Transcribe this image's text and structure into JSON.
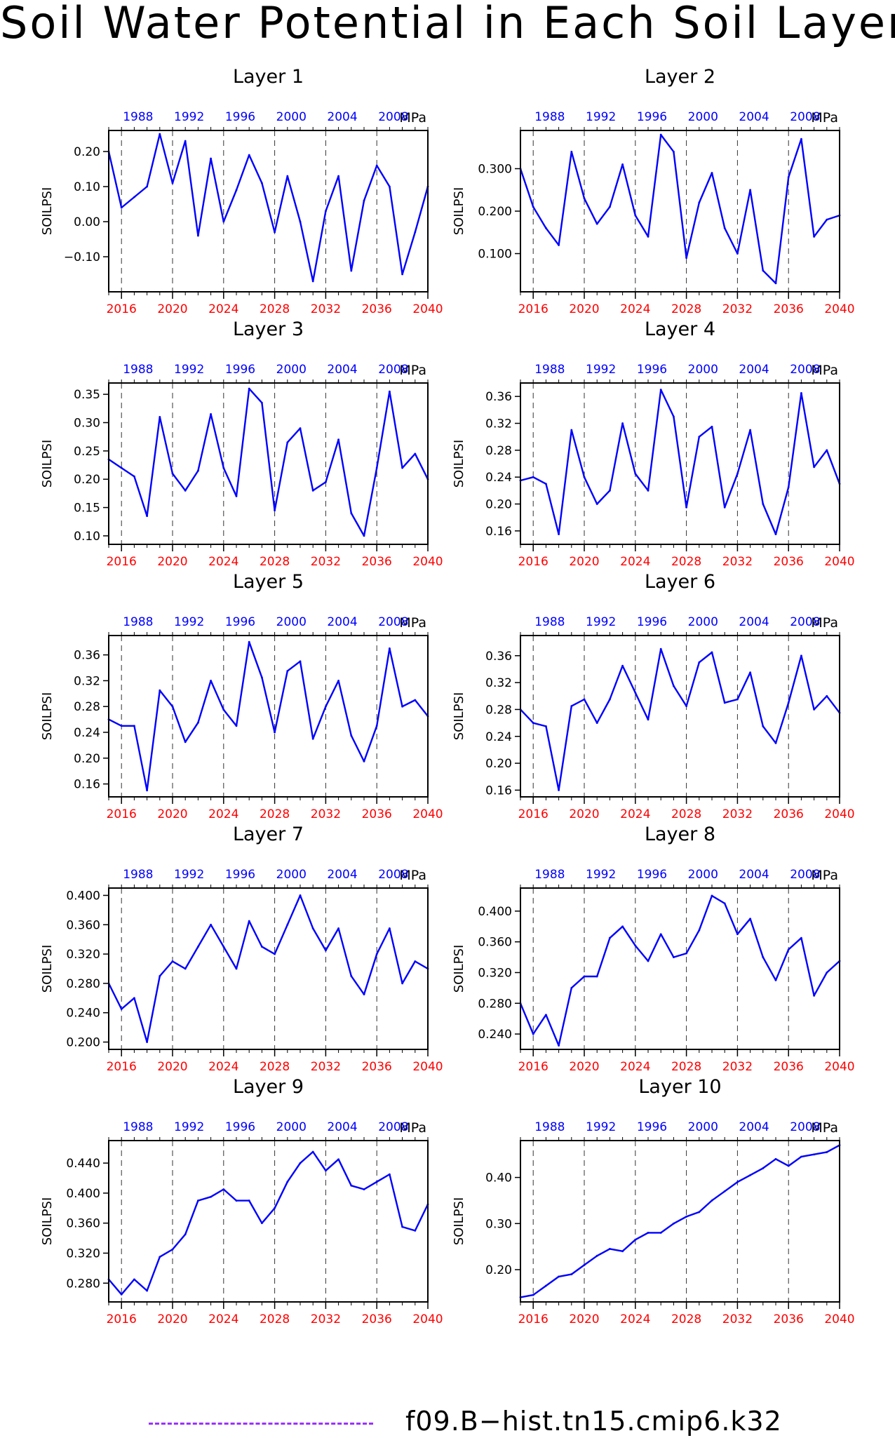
{
  "title": "Soil Water Potential in Each Soil Layer",
  "legend": {
    "label": "f09.B−hist.tn15.cmip6.k32",
    "color": "#9b30ff"
  },
  "colors": {
    "line": "#0000ff",
    "bottom_ticks": "#ff0000",
    "top_ticks": "#0000ff"
  },
  "chart_data": [
    {
      "type": "line",
      "title": "Layer 1",
      "ylabel": "SOILPSI",
      "unit": "MPa",
      "xlim": [
        2015,
        2040
      ],
      "x_bottom_ticks": [
        "2016",
        "2020",
        "2024",
        "2028",
        "2032",
        "2036",
        "2040"
      ],
      "x_top_ticks": [
        "1988",
        "1992",
        "1996",
        "2000",
        "2004",
        "2008"
      ],
      "ylim": [
        -0.2,
        0.26
      ],
      "yticks": [
        0.2,
        0.1,
        0.0,
        -0.1
      ],
      "ytick_labels": [
        "0.20",
        "0.10",
        "0.00",
        "−0.10"
      ],
      "x": [
        2015,
        2016,
        2017,
        2018,
        2019,
        2020,
        2021,
        2022,
        2023,
        2024,
        2025,
        2026,
        2027,
        2028,
        2029,
        2030,
        2031,
        2032,
        2033,
        2034,
        2035,
        2036,
        2037,
        2038,
        2039,
        2040
      ],
      "values": [
        0.2,
        0.04,
        0.07,
        0.1,
        0.25,
        0.11,
        0.23,
        -0.04,
        0.18,
        0.0,
        0.09,
        0.19,
        0.11,
        -0.03,
        0.13,
        0.0,
        -0.17,
        0.03,
        0.13,
        -0.14,
        0.06,
        0.16,
        0.1,
        -0.15,
        -0.03,
        0.1
      ]
    },
    {
      "type": "line",
      "title": "Layer 2",
      "ylabel": "SOILPSI",
      "unit": "MPa",
      "xlim": [
        2015,
        2040
      ],
      "x_bottom_ticks": [
        "2016",
        "2020",
        "2024",
        "2028",
        "2032",
        "2036",
        "2040"
      ],
      "x_top_ticks": [
        "1988",
        "1992",
        "1996",
        "2000",
        "2004",
        "2008"
      ],
      "ylim": [
        0.01,
        0.39
      ],
      "yticks": [
        0.3,
        0.2,
        0.1
      ],
      "ytick_labels": [
        "0.300",
        "0.200",
        "0.100"
      ],
      "x": [
        2015,
        2016,
        2017,
        2018,
        2019,
        2020,
        2021,
        2022,
        2023,
        2024,
        2025,
        2026,
        2027,
        2028,
        2029,
        2030,
        2031,
        2032,
        2033,
        2034,
        2035,
        2036,
        2037,
        2038,
        2039,
        2040
      ],
      "values": [
        0.3,
        0.21,
        0.16,
        0.12,
        0.34,
        0.23,
        0.17,
        0.21,
        0.31,
        0.19,
        0.14,
        0.38,
        0.34,
        0.09,
        0.22,
        0.29,
        0.16,
        0.1,
        0.25,
        0.06,
        0.03,
        0.28,
        0.37,
        0.14,
        0.18,
        0.19
      ]
    },
    {
      "type": "line",
      "title": "Layer 3",
      "ylabel": "SOILPSI",
      "unit": "MPa",
      "xlim": [
        2015,
        2040
      ],
      "x_bottom_ticks": [
        "2016",
        "2020",
        "2024",
        "2028",
        "2032",
        "2036",
        "2040"
      ],
      "x_top_ticks": [
        "1988",
        "1992",
        "1996",
        "2000",
        "2004",
        "2008"
      ],
      "ylim": [
        0.085,
        0.37
      ],
      "yticks": [
        0.35,
        0.3,
        0.25,
        0.2,
        0.15,
        0.1
      ],
      "ytick_labels": [
        "0.35",
        "0.30",
        "0.25",
        "0.20",
        "0.15",
        "0.10"
      ],
      "x": [
        2015,
        2016,
        2017,
        2018,
        2019,
        2020,
        2021,
        2022,
        2023,
        2024,
        2025,
        2026,
        2027,
        2028,
        2029,
        2030,
        2031,
        2032,
        2033,
        2034,
        2035,
        2036,
        2037,
        2038,
        2039,
        2040
      ],
      "values": [
        0.235,
        0.22,
        0.205,
        0.135,
        0.31,
        0.21,
        0.18,
        0.215,
        0.315,
        0.22,
        0.17,
        0.36,
        0.335,
        0.145,
        0.265,
        0.29,
        0.18,
        0.195,
        0.27,
        0.14,
        0.1,
        0.22,
        0.355,
        0.22,
        0.245,
        0.2
      ]
    },
    {
      "type": "line",
      "title": "Layer 4",
      "ylabel": "SOILPSI",
      "unit": "MPa",
      "xlim": [
        2015,
        2040
      ],
      "x_bottom_ticks": [
        "2016",
        "2020",
        "2024",
        "2028",
        "2032",
        "2036",
        "2040"
      ],
      "x_top_ticks": [
        "1988",
        "1992",
        "1996",
        "2000",
        "2004",
        "2008"
      ],
      "ylim": [
        0.14,
        0.38
      ],
      "yticks": [
        0.36,
        0.32,
        0.28,
        0.24,
        0.2,
        0.16
      ],
      "ytick_labels": [
        "0.36",
        "0.32",
        "0.28",
        "0.24",
        "0.20",
        "0.16"
      ],
      "x": [
        2015,
        2016,
        2017,
        2018,
        2019,
        2020,
        2021,
        2022,
        2023,
        2024,
        2025,
        2026,
        2027,
        2028,
        2029,
        2030,
        2031,
        2032,
        2033,
        2034,
        2035,
        2036,
        2037,
        2038,
        2039,
        2040
      ],
      "values": [
        0.235,
        0.24,
        0.23,
        0.155,
        0.31,
        0.24,
        0.2,
        0.22,
        0.32,
        0.245,
        0.22,
        0.37,
        0.33,
        0.195,
        0.3,
        0.315,
        0.195,
        0.245,
        0.31,
        0.2,
        0.155,
        0.225,
        0.365,
        0.255,
        0.28,
        0.23
      ]
    },
    {
      "type": "line",
      "title": "Layer 5",
      "ylabel": "SOILPSI",
      "unit": "MPa",
      "xlim": [
        2015,
        2040
      ],
      "x_bottom_ticks": [
        "2016",
        "2020",
        "2024",
        "2028",
        "2032",
        "2036",
        "2040"
      ],
      "x_top_ticks": [
        "1988",
        "1992",
        "1996",
        "2000",
        "2004",
        "2008"
      ],
      "ylim": [
        0.14,
        0.39
      ],
      "yticks": [
        0.36,
        0.32,
        0.28,
        0.24,
        0.2,
        0.16
      ],
      "ytick_labels": [
        "0.36",
        "0.32",
        "0.28",
        "0.24",
        "0.20",
        "0.16"
      ],
      "x": [
        2015,
        2016,
        2017,
        2018,
        2019,
        2020,
        2021,
        2022,
        2023,
        2024,
        2025,
        2026,
        2027,
        2028,
        2029,
        2030,
        2031,
        2032,
        2033,
        2034,
        2035,
        2036,
        2037,
        2038,
        2039,
        2040
      ],
      "values": [
        0.26,
        0.25,
        0.25,
        0.15,
        0.305,
        0.28,
        0.225,
        0.255,
        0.32,
        0.275,
        0.25,
        0.38,
        0.325,
        0.24,
        0.335,
        0.35,
        0.23,
        0.28,
        0.32,
        0.235,
        0.195,
        0.25,
        0.37,
        0.28,
        0.29,
        0.265
      ]
    },
    {
      "type": "line",
      "title": "Layer 6",
      "ylabel": "SOILPSI",
      "unit": "MPa",
      "xlim": [
        2015,
        2040
      ],
      "x_bottom_ticks": [
        "2016",
        "2020",
        "2024",
        "2028",
        "2032",
        "2036",
        "2040"
      ],
      "x_top_ticks": [
        "1988",
        "1992",
        "1996",
        "2000",
        "2004",
        "2008"
      ],
      "ylim": [
        0.15,
        0.39
      ],
      "yticks": [
        0.36,
        0.32,
        0.28,
        0.24,
        0.2,
        0.16
      ],
      "ytick_labels": [
        "0.36",
        "0.32",
        "0.28",
        "0.24",
        "0.20",
        "0.16"
      ],
      "x": [
        2015,
        2016,
        2017,
        2018,
        2019,
        2020,
        2021,
        2022,
        2023,
        2024,
        2025,
        2026,
        2027,
        2028,
        2029,
        2030,
        2031,
        2032,
        2033,
        2034,
        2035,
        2036,
        2037,
        2038,
        2039,
        2040
      ],
      "values": [
        0.28,
        0.26,
        0.255,
        0.16,
        0.285,
        0.295,
        0.26,
        0.295,
        0.345,
        0.305,
        0.265,
        0.37,
        0.315,
        0.285,
        0.35,
        0.365,
        0.29,
        0.295,
        0.335,
        0.255,
        0.23,
        0.29,
        0.36,
        0.28,
        0.3,
        0.275
      ]
    },
    {
      "type": "line",
      "title": "Layer 7",
      "ylabel": "SOILPSI",
      "unit": "MPa",
      "xlim": [
        2015,
        2040
      ],
      "x_bottom_ticks": [
        "2016",
        "2020",
        "2024",
        "2028",
        "2032",
        "2036",
        "2040"
      ],
      "x_top_ticks": [
        "1988",
        "1992",
        "1996",
        "2000",
        "2004",
        "2008"
      ],
      "ylim": [
        0.19,
        0.41
      ],
      "yticks": [
        0.4,
        0.36,
        0.32,
        0.28,
        0.24,
        0.2
      ],
      "ytick_labels": [
        "0.400",
        "0.360",
        "0.320",
        "0.280",
        "0.240",
        "0.200"
      ],
      "x": [
        2015,
        2016,
        2017,
        2018,
        2019,
        2020,
        2021,
        2022,
        2023,
        2024,
        2025,
        2026,
        2027,
        2028,
        2029,
        2030,
        2031,
        2032,
        2033,
        2034,
        2035,
        2036,
        2037,
        2038,
        2039,
        2040
      ],
      "values": [
        0.28,
        0.245,
        0.26,
        0.2,
        0.29,
        0.31,
        0.3,
        0.33,
        0.36,
        0.33,
        0.3,
        0.365,
        0.33,
        0.32,
        0.36,
        0.4,
        0.355,
        0.325,
        0.355,
        0.29,
        0.265,
        0.32,
        0.355,
        0.28,
        0.31,
        0.3
      ]
    },
    {
      "type": "line",
      "title": "Layer 8",
      "ylabel": "SOILPSI",
      "unit": "MPa",
      "xlim": [
        2015,
        2040
      ],
      "x_bottom_ticks": [
        "2016",
        "2020",
        "2024",
        "2028",
        "2032",
        "2036",
        "2040"
      ],
      "x_top_ticks": [
        "1988",
        "1992",
        "1996",
        "2000",
        "2004",
        "2008"
      ],
      "ylim": [
        0.22,
        0.43
      ],
      "yticks": [
        0.4,
        0.36,
        0.32,
        0.28,
        0.24
      ],
      "ytick_labels": [
        "0.400",
        "0.360",
        "0.320",
        "0.280",
        "0.240"
      ],
      "x": [
        2015,
        2016,
        2017,
        2018,
        2019,
        2020,
        2021,
        2022,
        2023,
        2024,
        2025,
        2026,
        2027,
        2028,
        2029,
        2030,
        2031,
        2032,
        2033,
        2034,
        2035,
        2036,
        2037,
        2038,
        2039,
        2040
      ],
      "values": [
        0.28,
        0.24,
        0.265,
        0.225,
        0.3,
        0.315,
        0.315,
        0.365,
        0.38,
        0.355,
        0.335,
        0.37,
        0.34,
        0.345,
        0.375,
        0.42,
        0.41,
        0.37,
        0.39,
        0.34,
        0.31,
        0.35,
        0.365,
        0.29,
        0.32,
        0.335
      ]
    },
    {
      "type": "line",
      "title": "Layer 9",
      "ylabel": "SOILPSI",
      "unit": "MPa",
      "xlim": [
        2015,
        2040
      ],
      "x_bottom_ticks": [
        "2016",
        "2020",
        "2024",
        "2028",
        "2032",
        "2036",
        "2040"
      ],
      "x_top_ticks": [
        "1988",
        "1992",
        "1996",
        "2000",
        "2004",
        "2008"
      ],
      "ylim": [
        0.255,
        0.47
      ],
      "yticks": [
        0.44,
        0.4,
        0.36,
        0.32,
        0.28
      ],
      "ytick_labels": [
        "0.440",
        "0.400",
        "0.360",
        "0.320",
        "0.280"
      ],
      "x": [
        2015,
        2016,
        2017,
        2018,
        2019,
        2020,
        2021,
        2022,
        2023,
        2024,
        2025,
        2026,
        2027,
        2028,
        2029,
        2030,
        2031,
        2032,
        2033,
        2034,
        2035,
        2036,
        2037,
        2038,
        2039,
        2040
      ],
      "values": [
        0.285,
        0.265,
        0.285,
        0.27,
        0.315,
        0.325,
        0.345,
        0.39,
        0.395,
        0.405,
        0.39,
        0.39,
        0.36,
        0.38,
        0.415,
        0.44,
        0.455,
        0.43,
        0.445,
        0.41,
        0.405,
        0.415,
        0.425,
        0.355,
        0.35,
        0.385
      ]
    },
    {
      "type": "line",
      "title": "Layer 10",
      "ylabel": "SOILPSI",
      "unit": "MPa",
      "xlim": [
        2015,
        2040
      ],
      "x_bottom_ticks": [
        "2016",
        "2020",
        "2024",
        "2028",
        "2032",
        "2036",
        "2040"
      ],
      "x_top_ticks": [
        "1988",
        "1992",
        "1996",
        "2000",
        "2004",
        "2008"
      ],
      "ylim": [
        0.13,
        0.48
      ],
      "yticks": [
        0.4,
        0.3,
        0.2
      ],
      "ytick_labels": [
        "0.40",
        "0.30",
        "0.20"
      ],
      "x": [
        2015,
        2016,
        2017,
        2018,
        2019,
        2020,
        2021,
        2022,
        2023,
        2024,
        2025,
        2026,
        2027,
        2028,
        2029,
        2030,
        2031,
        2032,
        2033,
        2034,
        2035,
        2036,
        2037,
        2038,
        2039,
        2040
      ],
      "values": [
        0.14,
        0.145,
        0.165,
        0.185,
        0.19,
        0.21,
        0.23,
        0.245,
        0.24,
        0.265,
        0.28,
        0.28,
        0.3,
        0.315,
        0.325,
        0.35,
        0.37,
        0.39,
        0.405,
        0.42,
        0.44,
        0.425,
        0.445,
        0.45,
        0.455,
        0.47
      ]
    }
  ]
}
